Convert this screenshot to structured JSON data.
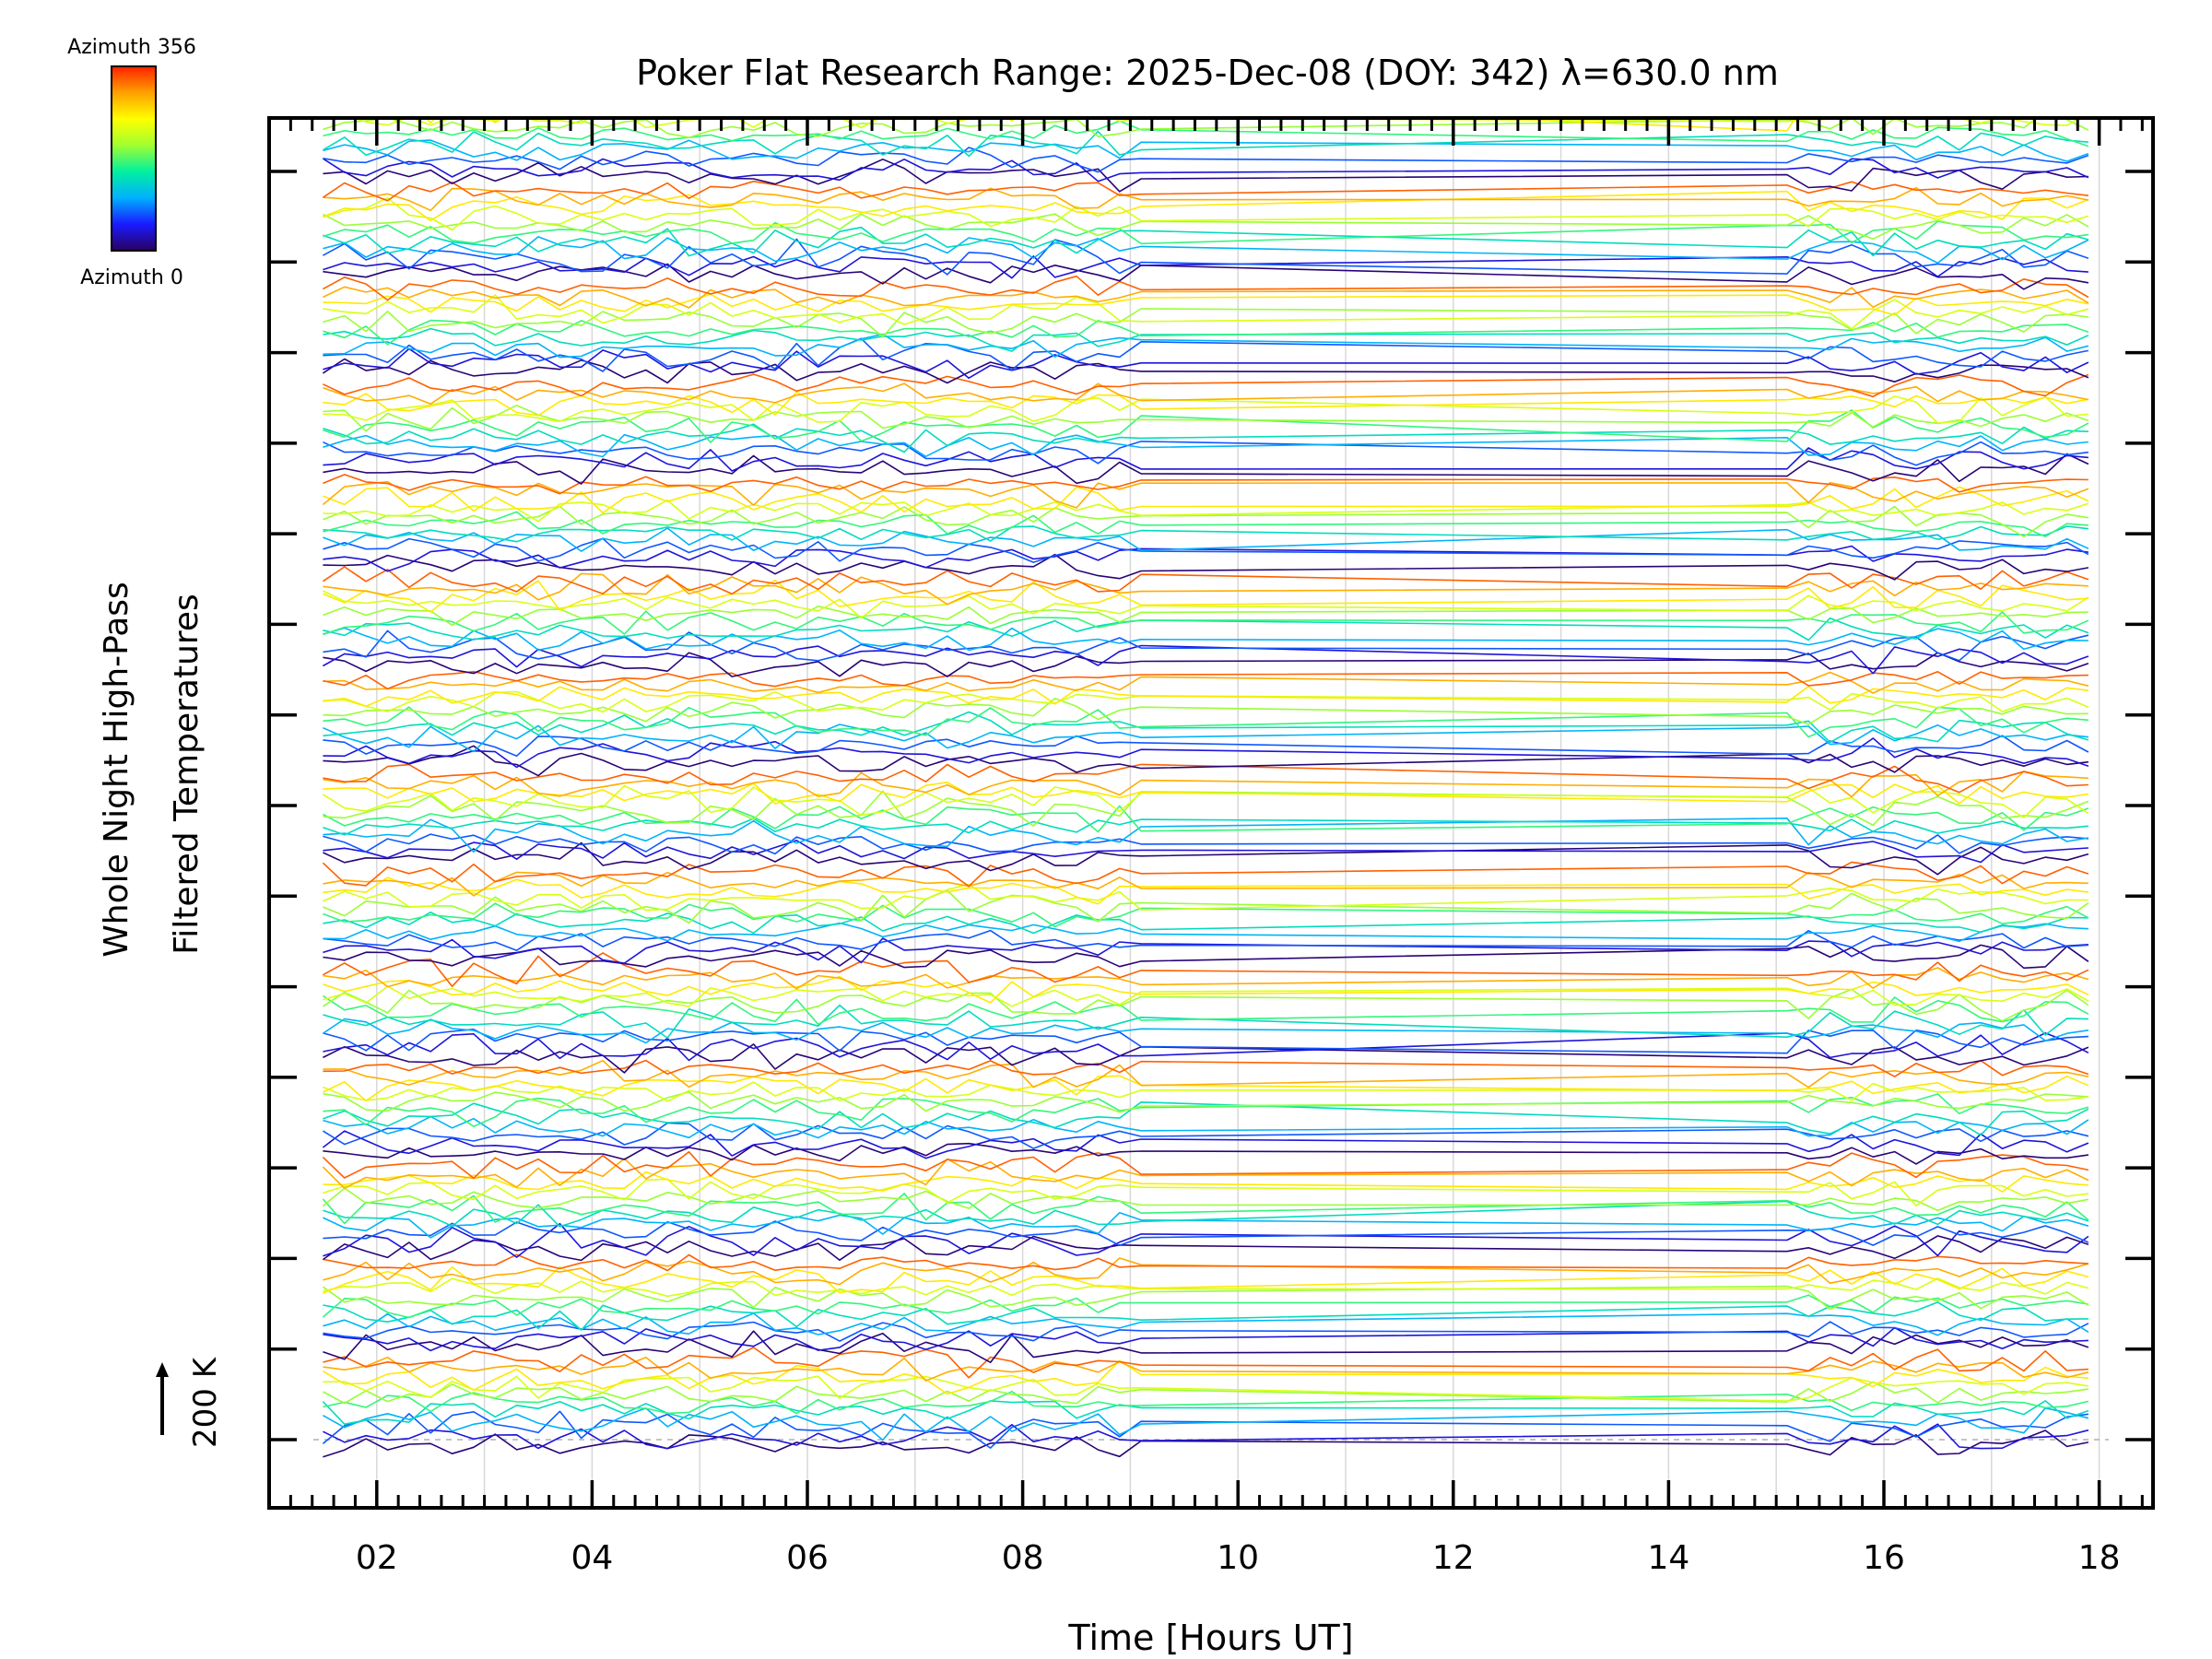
{
  "chart_data": {
    "type": "line",
    "title": "Poker Flat Research Range: 2025-Dec-08 (DOY: 342) λ=630.0 nm",
    "xlabel": "Time [Hours UT]",
    "ylabel_line1": "Whole Night High-Pass",
    "ylabel_line2": "Filtered Temperatures",
    "scale_label": "200 K",
    "colorbar": {
      "top_label": "Azimuth 356",
      "bottom_label": "Azimuth 0",
      "colormap": "rainbow",
      "stops": [
        "#2a0060",
        "#1a1aff",
        "#00b0ff",
        "#00f0a0",
        "#a0ff30",
        "#ffff00",
        "#ffa000",
        "#ff2000"
      ]
    },
    "xlim": [
      1.0,
      18.5
    ],
    "xticks": [
      "02",
      "04",
      "06",
      "08",
      "10",
      "12",
      "14",
      "16",
      "18"
    ],
    "xtick_values": [
      2,
      4,
      6,
      8,
      10,
      12,
      14,
      16,
      18
    ],
    "x_minor_step_hours": 0.2,
    "grid": true,
    "y_tick_count": 15,
    "data_gap_hours": [
      9.2,
      15.0
    ],
    "sample_step_hours": 0.2,
    "time_start": 1.5,
    "time_end": 18.0,
    "series_groups": 14,
    "series_per_group": 11,
    "series_groups_colors_note": "offset-stacked traces, one per azimuth, colored by azimuth"
  }
}
